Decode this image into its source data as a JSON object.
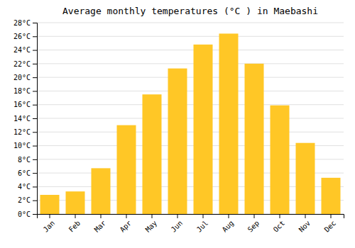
{
  "chart_data": {
    "type": "bar",
    "title": "Average monthly temperatures (°C ) in Maebashi",
    "categories": [
      "Jan",
      "Feb",
      "Mar",
      "Apr",
      "May",
      "Jun",
      "Jul",
      "Aug",
      "Sep",
      "Oct",
      "Nov",
      "Dec"
    ],
    "values": [
      2.8,
      3.3,
      6.7,
      13.0,
      17.5,
      21.3,
      24.8,
      26.4,
      22.0,
      15.9,
      10.4,
      5.3
    ],
    "color": "#FFC726",
    "ylim": [
      0,
      28
    ],
    "yticks": [
      {
        "value": 0,
        "label": "0°C"
      },
      {
        "value": 2,
        "label": "2°C"
      },
      {
        "value": 4,
        "label": "4°C"
      },
      {
        "value": 6,
        "label": "6°C"
      },
      {
        "value": 8,
        "label": "8°C"
      },
      {
        "value": 10,
        "label": "10°C"
      },
      {
        "value": 12,
        "label": "12°C"
      },
      {
        "value": 14,
        "label": "14°C"
      },
      {
        "value": 16,
        "label": "16°C"
      },
      {
        "value": 18,
        "label": "18°C"
      },
      {
        "value": 20,
        "label": "20°C"
      },
      {
        "value": 22,
        "label": "22°C"
      },
      {
        "value": 24,
        "label": "24°C"
      },
      {
        "value": 26,
        "label": "26°C"
      },
      {
        "value": 28,
        "label": "28°C"
      }
    ],
    "grid": true
  }
}
